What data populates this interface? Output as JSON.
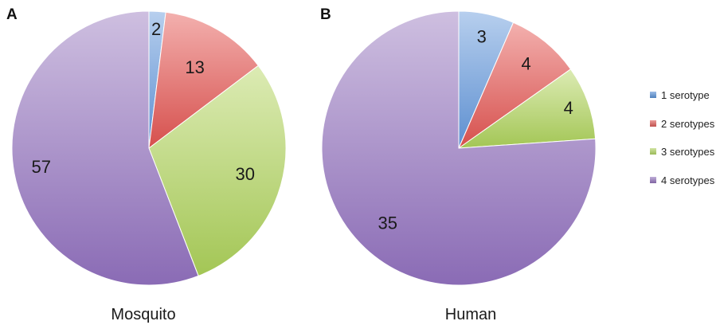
{
  "chart_data": [
    {
      "type": "pie",
      "panel": "A",
      "title": "Mosquito",
      "categories": [
        "1 serotype",
        "2 serotypes",
        "3 serotypes",
        "4 serotypes"
      ],
      "values": [
        2,
        13,
        30,
        57
      ],
      "colors": [
        "#7fa8dc",
        "#e27b7b",
        "#b5d46e",
        "#a58ac6"
      ]
    },
    {
      "type": "pie",
      "panel": "B",
      "title": "Human",
      "categories": [
        "1 serotype",
        "2 serotypes",
        "3 serotypes",
        "4 serotypes"
      ],
      "values": [
        3,
        4,
        4,
        35
      ],
      "colors": [
        "#7fa8dc",
        "#e27b7b",
        "#b5d46e",
        "#a58ac6"
      ]
    }
  ],
  "legend": {
    "placement": "right",
    "items": [
      {
        "label": "1 serotype",
        "color": "#4f81bd"
      },
      {
        "label": "2 serotypes",
        "color": "#c0504d"
      },
      {
        "label": "3 serotypes",
        "color": "#9bbb59"
      },
      {
        "label": "4 serotypes",
        "color": "#8064a2"
      }
    ]
  }
}
